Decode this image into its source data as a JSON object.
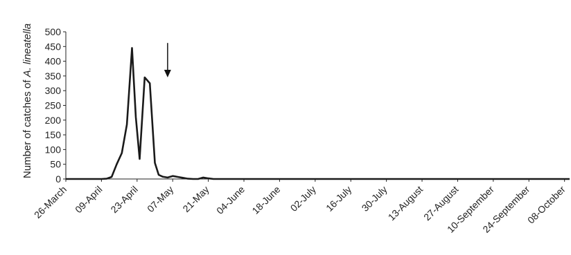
{
  "chart_data": {
    "type": "line",
    "title": "",
    "ylabel": "Number of catches of A. lineatella",
    "ylabel_plain": "Number of catches of ",
    "ylabel_italic": "A. lineatella",
    "xlabel": "",
    "ylim": [
      0,
      500
    ],
    "yticks": [
      0,
      50,
      100,
      150,
      200,
      250,
      300,
      350,
      400,
      450,
      500
    ],
    "x_tick_labels": [
      "26-March",
      "09-April",
      "23-April",
      "07-May",
      "21-May",
      "04-June",
      "18-June",
      "02-July",
      "16-July",
      "30-July",
      "13-August",
      "27-August",
      "10-September",
      "24-September",
      "08-October"
    ],
    "x_tick_days": [
      0,
      14,
      28,
      42,
      56,
      70,
      84,
      98,
      112,
      126,
      140,
      154,
      168,
      182,
      196
    ],
    "grid": false,
    "arrow_annotation_day": 40,
    "series": [
      {
        "color": "#1a1a1a",
        "x": [
          0,
          2,
          4,
          6,
          8,
          10,
          12,
          14,
          16,
          18,
          20,
          22,
          24,
          26,
          27.5,
          29,
          31,
          33,
          35,
          36.5,
          38,
          40,
          42,
          44,
          46,
          48,
          50,
          52,
          54,
          56,
          58,
          60,
          62,
          64,
          66,
          68,
          70,
          72,
          74,
          76,
          78,
          80,
          82,
          84,
          86,
          88,
          90,
          92,
          94,
          96,
          98,
          100,
          102,
          104,
          106,
          108,
          110,
          112,
          114,
          116,
          118,
          120,
          122,
          124,
          126,
          128,
          130,
          132,
          134,
          136,
          138,
          140,
          142,
          144,
          146,
          148,
          150,
          152,
          154,
          156,
          158,
          160,
          162,
          164,
          166,
          168,
          170,
          172,
          174,
          176,
          178,
          180,
          182,
          184,
          186,
          188,
          190,
          192,
          194,
          196,
          198
        ],
        "y": [
          0,
          0,
          0,
          0,
          0,
          0,
          0,
          0,
          1,
          7,
          50,
          88,
          185,
          445,
          210,
          68,
          345,
          325,
          55,
          14,
          8,
          5,
          10,
          7,
          4,
          1,
          0,
          0,
          5,
          2,
          0,
          0,
          0,
          0,
          0,
          0,
          0,
          0,
          0,
          0,
          0,
          0,
          0,
          0,
          0,
          0,
          0,
          0,
          0,
          0,
          0,
          0,
          0,
          0,
          0,
          0,
          0,
          0,
          0,
          0,
          0,
          0,
          0,
          0,
          0,
          0,
          0,
          0,
          0,
          0,
          0,
          0,
          0,
          0,
          0,
          0,
          0,
          0,
          0,
          0,
          0,
          0,
          0,
          0,
          0,
          0,
          0,
          0,
          0,
          0,
          0,
          0,
          0,
          0,
          0,
          0,
          0,
          0,
          0,
          0,
          0
        ]
      }
    ]
  }
}
